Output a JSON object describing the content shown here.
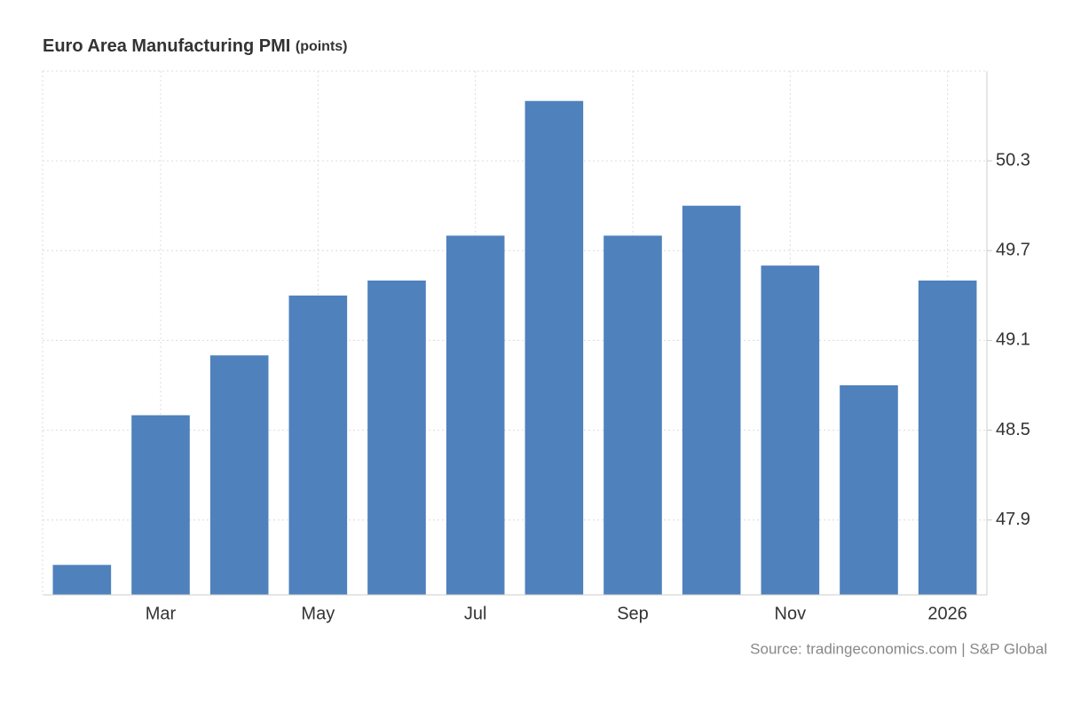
{
  "chart_data": {
    "type": "bar",
    "title": "Euro Area Manufacturing PMI",
    "subtitle": "(points)",
    "source": "Source: tradingeconomics.com | S&P Global",
    "categories": [
      null,
      "Mar",
      null,
      "May",
      null,
      "Jul",
      null,
      "Sep",
      null,
      "Nov",
      null,
      "2026"
    ],
    "values": [
      47.6,
      48.6,
      49.0,
      49.4,
      49.5,
      49.8,
      50.7,
      49.8,
      50.0,
      49.6,
      48.8,
      49.5
    ],
    "color": "#4f81bd",
    "ylim": [
      47.4,
      50.9
    ],
    "yticks": [
      47.9,
      48.5,
      49.1,
      49.7,
      50.3
    ],
    "grid": true
  }
}
